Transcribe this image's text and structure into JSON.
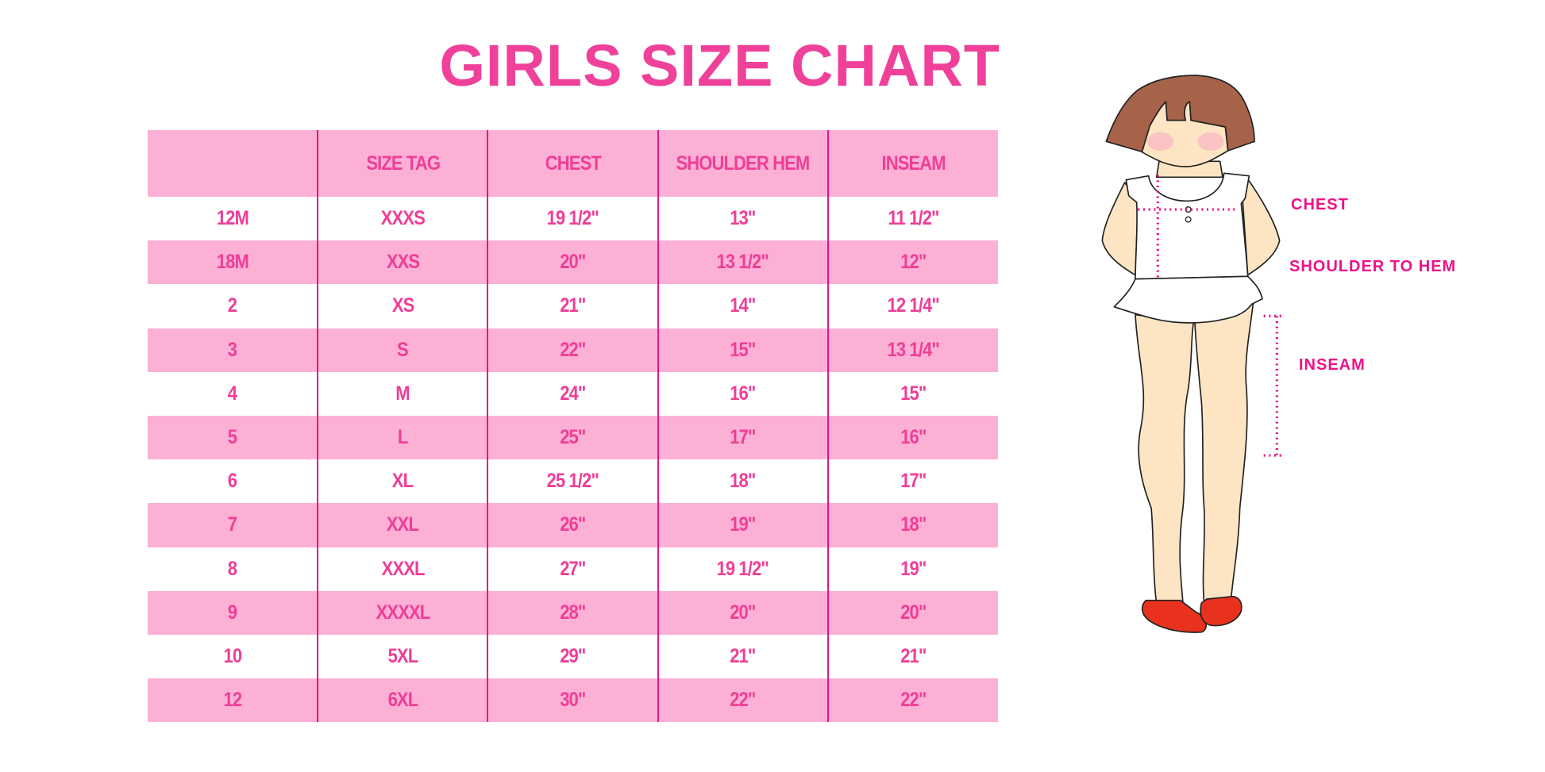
{
  "title": "GIRLS SIZE CHART",
  "table": {
    "headers": [
      "",
      "SIZE TAG",
      "CHEST",
      "SHOULDER HEM",
      "INSEAM"
    ],
    "rows": [
      [
        "12M",
        "XXXS",
        "19 1/2\"",
        "13\"",
        "11 1/2\""
      ],
      [
        "18M",
        "XXS",
        "20\"",
        "13 1/2\"",
        "12\""
      ],
      [
        "2",
        "XS",
        "21\"",
        "14\"",
        "12 1/4\""
      ],
      [
        "3",
        "S",
        "22\"",
        "15\"",
        "13 1/4\""
      ],
      [
        "4",
        "M",
        "24\"",
        "16\"",
        "15\""
      ],
      [
        "5",
        "L",
        "25\"",
        "17\"",
        "16\""
      ],
      [
        "6",
        "XL",
        "25 1/2\"",
        "18\"",
        "17\""
      ],
      [
        "7",
        "XXL",
        "26\"",
        "19\"",
        "18\""
      ],
      [
        "8",
        "XXXL",
        "27\"",
        "19 1/2\"",
        "19\""
      ],
      [
        "9",
        "XXXXL",
        "28\"",
        "20\"",
        "20\""
      ],
      [
        "10",
        "5XL",
        "29\"",
        "21\"",
        "21\""
      ],
      [
        "12",
        "6XL",
        "30\"",
        "22\"",
        "22\""
      ]
    ]
  },
  "figure": {
    "labels": {
      "chest": "CHEST",
      "shoulder": "SHOULDER TO HEM",
      "inseam": "INSEAM"
    }
  },
  "colors": {
    "accent": "#ef3e97",
    "band": "#fcb0d5",
    "divider": "#e3168a"
  }
}
